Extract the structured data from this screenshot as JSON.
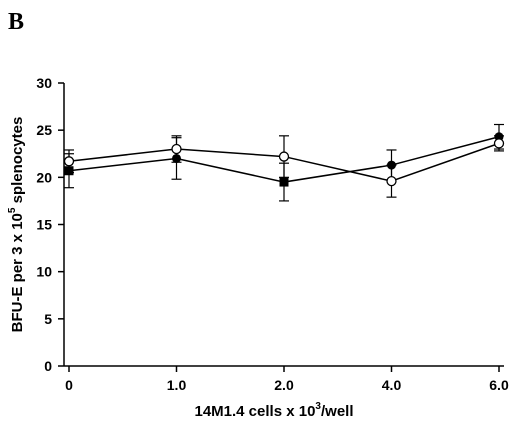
{
  "panel_label": "B",
  "chart_data": {
    "type": "line",
    "title": "",
    "xlabel": {
      "pre": "14M1.4 cells x 10",
      "sup": "3",
      "post": "/well"
    },
    "ylabel": {
      "pre": "BFU-E per 3 x 10",
      "sup": "5",
      "post": " splenocytes"
    },
    "categories": [
      "0",
      "1.0",
      "2.0",
      "4.0",
      "6.0"
    ],
    "ylim": [
      0,
      30
    ],
    "yticks": [
      0,
      5,
      10,
      15,
      20,
      25,
      30
    ],
    "grid": false,
    "series": [
      {
        "marker": "filled",
        "values": [
          20.7,
          22.0,
          19.5,
          21.3,
          24.3
        ],
        "errors": [
          1.8,
          2.2,
          2.0,
          1.6,
          1.3
        ]
      },
      {
        "marker": "open",
        "values": [
          21.7,
          23.0,
          22.2,
          19.6,
          23.6
        ],
        "errors": [
          1.2,
          1.4,
          2.2,
          1.7,
          0.8
        ]
      }
    ]
  }
}
